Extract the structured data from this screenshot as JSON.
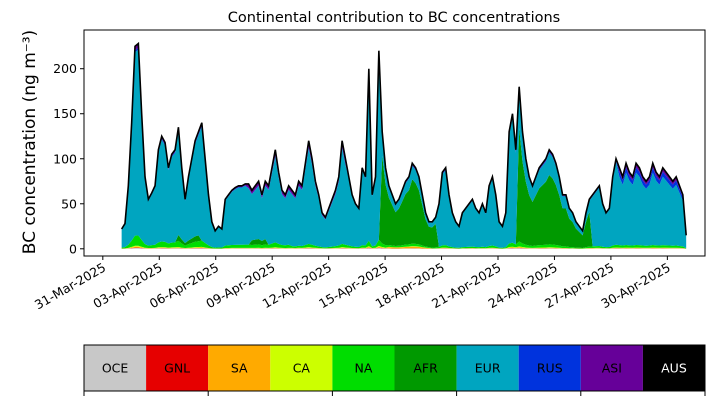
{
  "chart_data": {
    "type": "area",
    "title": "Continental contribution to BC concentrations",
    "ylabel": "BC concentration (ng m⁻³)",
    "xlabel": "",
    "ylim": [
      -8,
      243
    ],
    "yticks": [
      0,
      50,
      100,
      150,
      200
    ],
    "x_start": "01-Apr-2025",
    "x_end": "01-May-2025",
    "xlim": [
      "30-Mar-2025",
      "02-May-2025"
    ],
    "xtick_labels": [
      "31-Mar-2025",
      "03-Apr-2025",
      "06-Apr-2025",
      "09-Apr-2025",
      "12-Apr-2025",
      "15-Apr-2025",
      "18-Apr-2025",
      "21-Apr-2025",
      "24-Apr-2025",
      "27-Apr-2025",
      "30-Apr-2025"
    ],
    "total_values": [
      22,
      28,
      70,
      140,
      225,
      228,
      150,
      80,
      55,
      62,
      70,
      110,
      125,
      118,
      90,
      105,
      110,
      135,
      90,
      55,
      80,
      100,
      120,
      130,
      140,
      100,
      60,
      30,
      20,
      25,
      22,
      55,
      60,
      65,
      68,
      70,
      70,
      72,
      72,
      65,
      70,
      75,
      60,
      75,
      70,
      90,
      110,
      85,
      65,
      60,
      70,
      65,
      60,
      75,
      70,
      95,
      120,
      100,
      75,
      60,
      40,
      35,
      45,
      55,
      65,
      80,
      120,
      100,
      80,
      60,
      50,
      45,
      90,
      80,
      200,
      60,
      80,
      220,
      130,
      90,
      70,
      60,
      50,
      55,
      65,
      75,
      80,
      95,
      90,
      80,
      60,
      40,
      30,
      30,
      35,
      50,
      85,
      90,
      60,
      40,
      30,
      25,
      40,
      45,
      50,
      55,
      45,
      40,
      50,
      40,
      70,
      80,
      60,
      30,
      25,
      40,
      130,
      150,
      110,
      180,
      130,
      100,
      80,
      70,
      80,
      90,
      95,
      100,
      110,
      105,
      95,
      80,
      60,
      60,
      45,
      40,
      30,
      25,
      20,
      40,
      55,
      60,
      65,
      70,
      50,
      40,
      45,
      80,
      100,
      90,
      80,
      95,
      85,
      80,
      95,
      90,
      80,
      75,
      80,
      95,
      85,
      80,
      90,
      85,
      80,
      75,
      80,
      70,
      60,
      15
    ],
    "series": [
      {
        "name": "OCE",
        "color": "#c8c8c8"
      },
      {
        "name": "GNL",
        "color": "#e60000"
      },
      {
        "name": "SA",
        "color": "#ffaa00"
      },
      {
        "name": "CA",
        "color": "#ccff00"
      },
      {
        "name": "NA",
        "color": "#00dd00"
      },
      {
        "name": "AFR",
        "color": "#009900"
      },
      {
        "name": "EUR",
        "color": "#00a5c0"
      },
      {
        "name": "RUS",
        "color": "#0033dd"
      },
      {
        "name": "ASI",
        "color": "#660099"
      },
      {
        "name": "AUS",
        "color": "#000000"
      }
    ],
    "legend": {
      "placement": "bottom",
      "text_colors": [
        "#000000",
        "#000000",
        "#000000",
        "#000000",
        "#000000",
        "#000000",
        "#000000",
        "#000000",
        "#000000",
        "#ffffff"
      ]
    }
  }
}
